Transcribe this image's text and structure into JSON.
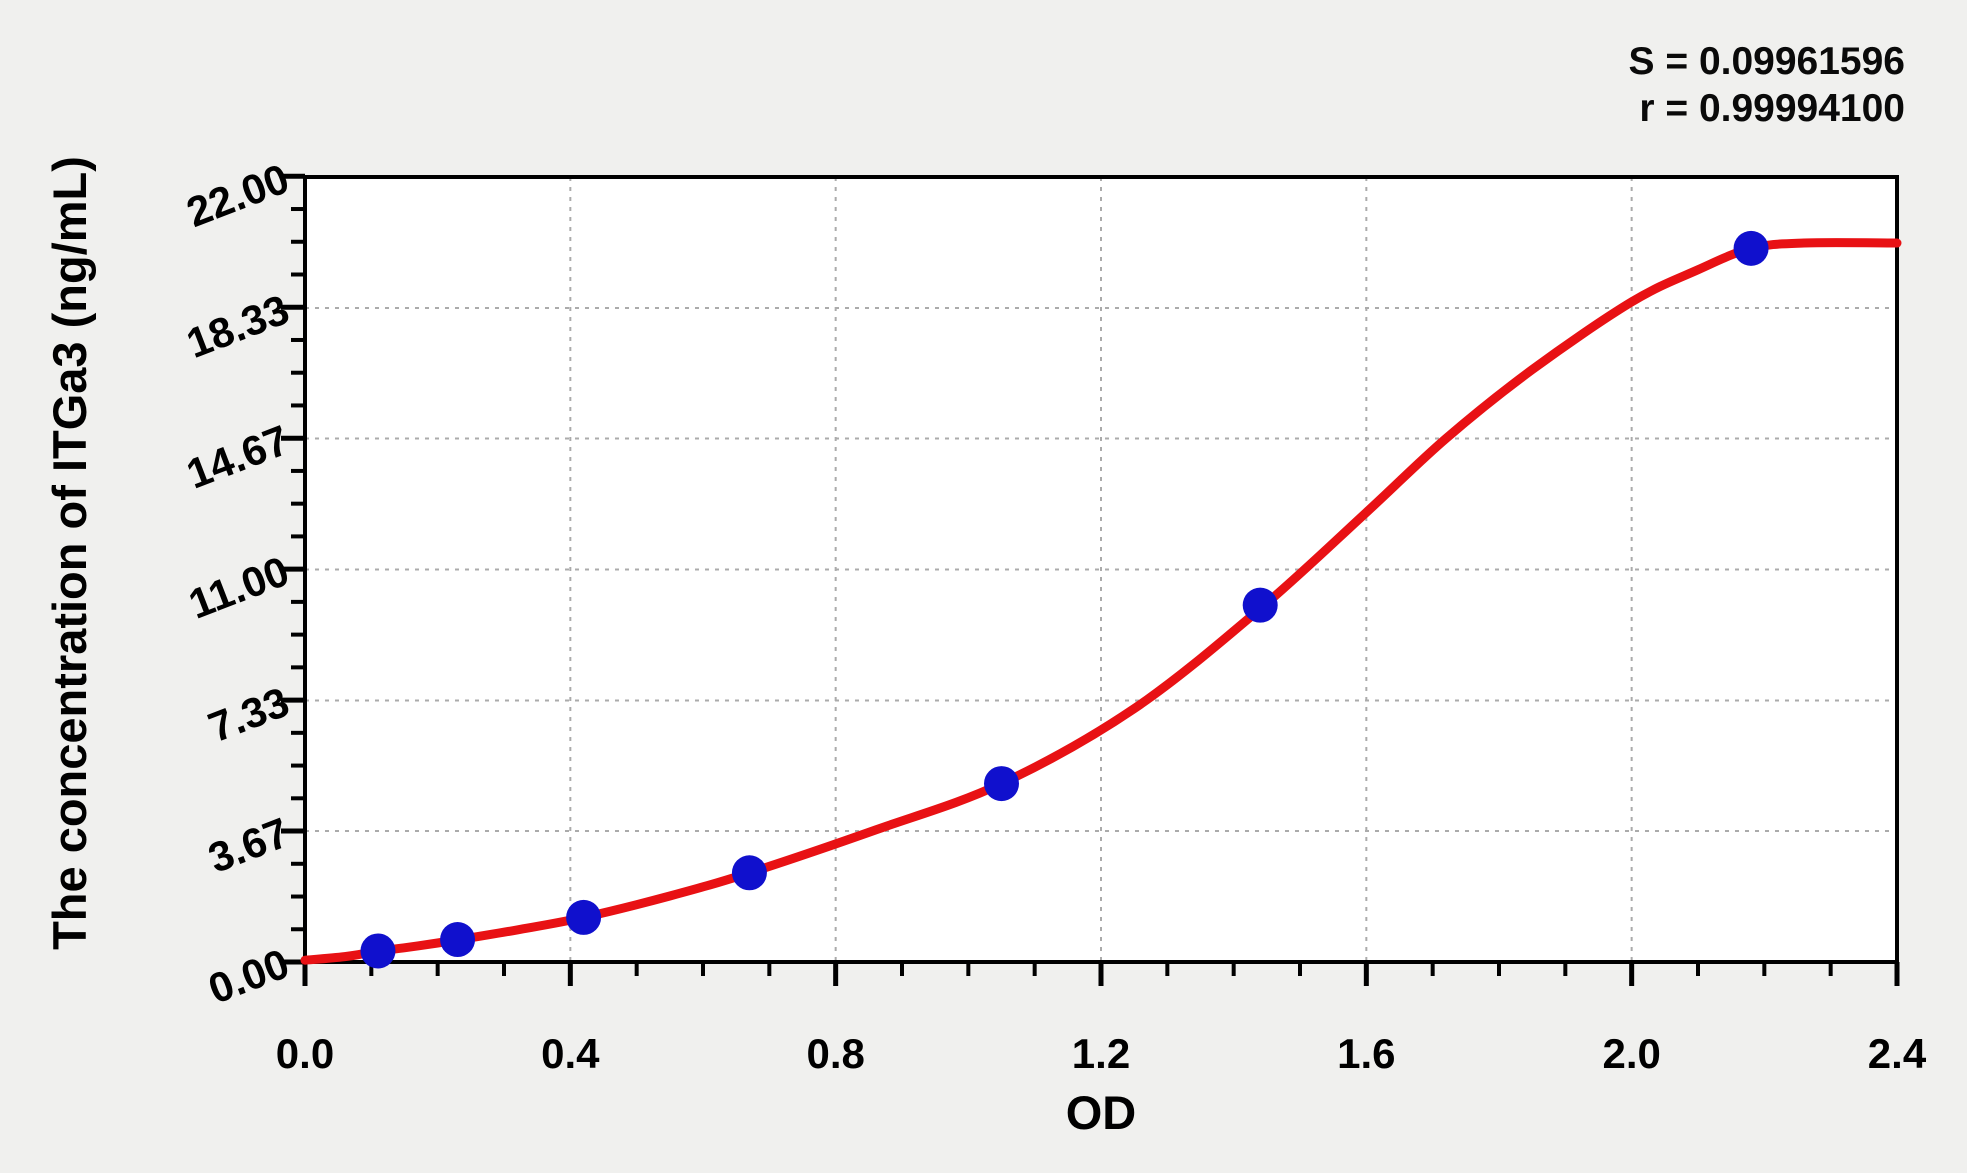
{
  "chart_data": {
    "type": "scatter",
    "subtype": "standard-curve-with-fit-line",
    "title": "",
    "xlabel": "OD",
    "ylabel": "The concentration of ITGa3 (ng/mL)",
    "stats_s": "S = 0.09961596",
    "stats_r": "r = 0.99994100",
    "xlim": [
      0.0,
      2.4
    ],
    "ylim": [
      0.0,
      22.0
    ],
    "x_tick_values": [
      0.0,
      0.4,
      0.8,
      1.2,
      1.6,
      2.0,
      2.4
    ],
    "x_tick_labels": [
      "0.0",
      "0.4",
      "0.8",
      "1.2",
      "1.6",
      "2.0",
      "2.4"
    ],
    "x_minor_step": 0.1,
    "y_tick_values": [
      0.0,
      3.67,
      7.33,
      11.0,
      14.67,
      18.33,
      22.0
    ],
    "y_tick_labels": [
      "0.00",
      "3.67",
      "7.33",
      "11.00",
      "14.67",
      "18.33",
      "22.00"
    ],
    "y_minor_divisions": 4,
    "grid": true,
    "legend": "none",
    "points": [
      {
        "od": 0.11,
        "conc": 0.31
      },
      {
        "od": 0.23,
        "conc": 0.63
      },
      {
        "od": 0.42,
        "conc": 1.25
      },
      {
        "od": 0.67,
        "conc": 2.5
      },
      {
        "od": 1.05,
        "conc": 5.0
      },
      {
        "od": 1.44,
        "conc": 10.0
      },
      {
        "od": 2.18,
        "conc": 20.0
      }
    ],
    "curve_samples": [
      {
        "od": 0.0,
        "conc": 0.05
      },
      {
        "od": 0.06,
        "conc": 0.15
      },
      {
        "od": 0.11,
        "conc": 0.3
      },
      {
        "od": 0.17,
        "conc": 0.45
      },
      {
        "od": 0.23,
        "conc": 0.62
      },
      {
        "od": 0.32,
        "conc": 0.9
      },
      {
        "od": 0.42,
        "conc": 1.25
      },
      {
        "od": 0.55,
        "conc": 1.85
      },
      {
        "od": 0.67,
        "conc": 2.5
      },
      {
        "od": 0.86,
        "conc": 3.7
      },
      {
        "od": 1.05,
        "conc": 5.0
      },
      {
        "od": 1.25,
        "conc": 7.1
      },
      {
        "od": 1.44,
        "conc": 9.9
      },
      {
        "od": 1.6,
        "conc": 12.6
      },
      {
        "od": 1.72,
        "conc": 14.67
      },
      {
        "od": 1.85,
        "conc": 16.6
      },
      {
        "od": 2.0,
        "conc": 18.5
      },
      {
        "od": 2.1,
        "conc": 19.4
      },
      {
        "od": 2.18,
        "conc": 20.0
      },
      {
        "od": 2.26,
        "conc": 20.15
      },
      {
        "od": 2.4,
        "conc": 20.15
      }
    ],
    "colors": {
      "curve": "#e81114",
      "point": "#1010cd",
      "grid": "#ababab",
      "axis": "#000000",
      "plot_bg": "#ffffff",
      "figure_bg": "#f0f0ee",
      "text": "#000000"
    }
  }
}
